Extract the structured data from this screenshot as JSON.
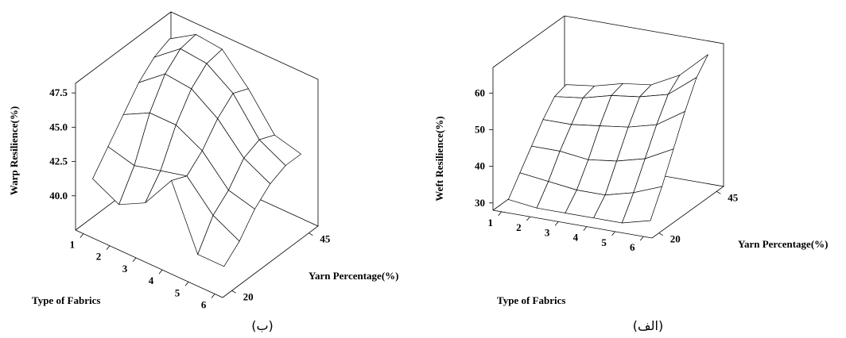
{
  "chart_data": [
    {
      "type": "surface",
      "x_label": "Type of Fabrics",
      "y_label": "Yarn Percentage(%)",
      "z_label": "Warp Resilience(%)",
      "caption": "(ب)",
      "x": [
        1,
        2,
        3,
        4,
        5,
        6
      ],
      "y": [
        20,
        25,
        30,
        35,
        40,
        45
      ],
      "z": [
        [
          41,
          42.5,
          44,
          45.5,
          46.5,
          47
        ],
        [
          40,
          42,
          45,
          47,
          48,
          48.2
        ],
        [
          41,
          42.5,
          45,
          46.8,
          47.8,
          48
        ],
        [
          43.5,
          43,
          44,
          45.5,
          46.5,
          46
        ],
        [
          39,
          41,
          42,
          43.5,
          44,
          43.5
        ],
        [
          39,
          40,
          41.5,
          42.5,
          43,
          43
        ]
      ],
      "xlim": [
        0.7,
        6.3
      ],
      "xticks": [
        1,
        2,
        3,
        4,
        5,
        6
      ],
      "ylim": [
        17,
        48
      ],
      "yticks": [
        20,
        45
      ],
      "zlim": [
        37.5,
        48.2
      ],
      "zticks": [
        {
          "value": 40,
          "label": "40.0"
        },
        42.5,
        {
          "value": 45,
          "label": "45.0"
        },
        47.5
      ]
    },
    {
      "type": "surface",
      "x_label": "Type of Fabrics",
      "y_label": "Yarn Percentage(%)",
      "z_label": "Weft Resilience(%)",
      "caption": "(الف)",
      "x": [
        1,
        2,
        3,
        4,
        5,
        6
      ],
      "y": [
        20,
        25,
        30,
        35,
        40,
        45
      ],
      "z": [
        [
          30,
          35,
          40,
          45,
          49,
          50
        ],
        [
          29,
          34,
          40,
          45,
          50,
          51
        ],
        [
          29,
          33,
          39,
          46,
          52,
          53
        ],
        [
          29,
          33,
          40,
          47,
          53,
          54
        ],
        [
          29,
          35,
          42,
          49,
          55,
          58
        ],
        [
          31,
          38,
          46,
          54,
          61,
          65
        ]
      ],
      "xlim": [
        0.7,
        6.3
      ],
      "xticks": [
        1,
        2,
        3,
        4,
        5,
        6
      ],
      "ylim": [
        17,
        48
      ],
      "yticks": [
        20,
        45
      ],
      "zlim": [
        28,
        67
      ],
      "zticks": [
        30,
        40,
        50,
        60
      ]
    }
  ]
}
